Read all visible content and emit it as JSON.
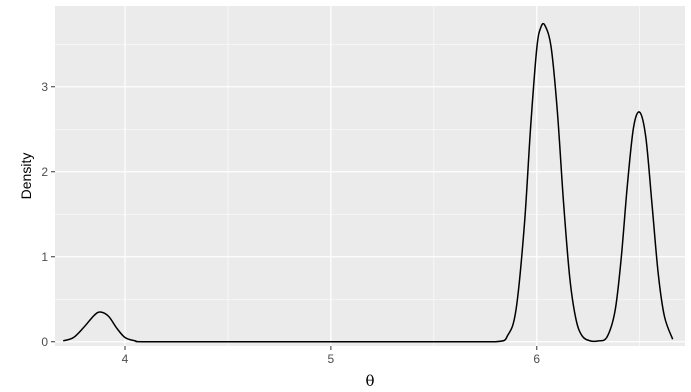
{
  "chart_data": {
    "type": "line",
    "title": "",
    "xlabel": "θ",
    "ylabel": "Density",
    "xlim": [
      3.66,
      6.72
    ],
    "ylim": [
      -0.05,
      3.95
    ],
    "x_ticks": [
      4,
      5,
      6
    ],
    "y_ticks": [
      0,
      1,
      2,
      3
    ],
    "grid": true,
    "legend": "none",
    "colors": {
      "panel": "#ebebeb",
      "grid": "#ffffff",
      "line": "#000000"
    },
    "series": [
      {
        "x": [
          3.7,
          3.75,
          3.8,
          3.85,
          3.88,
          3.92,
          3.96,
          4.0,
          4.05,
          4.1,
          4.5,
          5.0,
          5.5,
          5.8,
          5.86,
          5.9,
          5.94,
          5.97,
          6.0,
          6.02,
          6.04,
          6.07,
          6.1,
          6.13,
          6.16,
          6.19,
          6.22,
          6.26,
          6.3,
          6.34,
          6.38,
          6.41,
          6.44,
          6.47,
          6.5,
          6.53,
          6.56,
          6.59,
          6.62,
          6.66
        ],
        "y": [
          0.01,
          0.05,
          0.17,
          0.31,
          0.35,
          0.3,
          0.16,
          0.05,
          0.01,
          0.0,
          0.0,
          0.0,
          0.0,
          0.0,
          0.08,
          0.39,
          1.38,
          2.52,
          3.45,
          3.7,
          3.72,
          3.46,
          2.71,
          1.64,
          0.76,
          0.27,
          0.07,
          0.01,
          0.01,
          0.05,
          0.36,
          0.98,
          1.84,
          2.52,
          2.7,
          2.4,
          1.61,
          0.8,
          0.3,
          0.03
        ]
      }
    ]
  }
}
